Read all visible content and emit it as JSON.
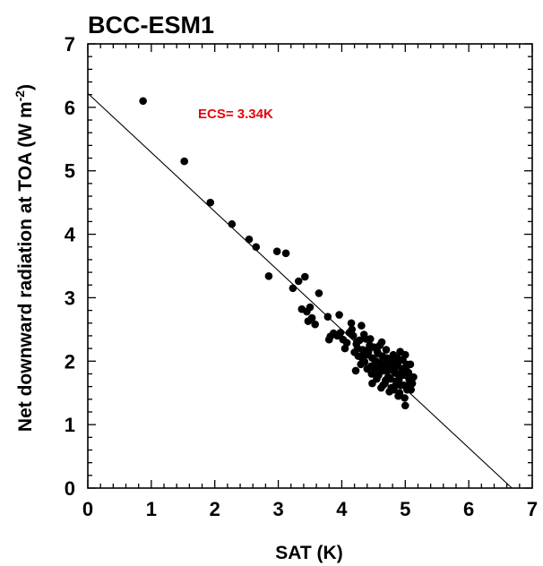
{
  "chart_data": {
    "type": "scatter",
    "title": "BCC-ESM1",
    "xlabel": "SAT (K)",
    "ylabel_main": "Net downward radiation at TOA (W m",
    "ylabel_sup": "-2",
    "ylabel_close": ")",
    "xlim": [
      0,
      7
    ],
    "ylim": [
      0,
      7
    ],
    "xticks": [
      0,
      1,
      2,
      3,
      4,
      5,
      6,
      7
    ],
    "yticks": [
      0,
      1,
      2,
      3,
      4,
      5,
      6,
      7
    ],
    "xtick_labels": [
      "0",
      "1",
      "2",
      "3",
      "4",
      "5",
      "6",
      "7"
    ],
    "ytick_labels": [
      "0",
      "1",
      "2",
      "3",
      "4",
      "5",
      "6",
      "7"
    ],
    "annotation": {
      "text": "ECS= 3.34K",
      "color": "#e8000b"
    },
    "regression_line": {
      "x": [
        0,
        6.68
      ],
      "y": [
        6.22,
        0
      ]
    },
    "points": [
      [
        0.87,
        6.1
      ],
      [
        1.52,
        5.15
      ],
      [
        1.93,
        4.5
      ],
      [
        2.27,
        4.16
      ],
      [
        2.54,
        3.92
      ],
      [
        2.65,
        3.8
      ],
      [
        2.85,
        3.34
      ],
      [
        2.98,
        3.73
      ],
      [
        3.12,
        3.7
      ],
      [
        3.23,
        3.15
      ],
      [
        3.32,
        3.26
      ],
      [
        3.42,
        3.33
      ],
      [
        3.37,
        2.82
      ],
      [
        3.45,
        2.78
      ],
      [
        3.5,
        2.85
      ],
      [
        3.53,
        2.68
      ],
      [
        3.47,
        2.63
      ],
      [
        3.58,
        2.58
      ],
      [
        3.64,
        3.07
      ],
      [
        3.78,
        2.7
      ],
      [
        3.82,
        2.39
      ],
      [
        3.87,
        2.44
      ],
      [
        3.93,
        2.4
      ],
      [
        3.96,
        2.73
      ],
      [
        3.8,
        2.34
      ],
      [
        4.02,
        2.34
      ],
      [
        4.08,
        2.29
      ],
      [
        4.12,
        2.45
      ],
      [
        4.16,
        2.5
      ],
      [
        4.2,
        2.14
      ],
      [
        4.23,
        2.27
      ],
      [
        4.26,
        2.08
      ],
      [
        4.28,
        2.33
      ],
      [
        4.31,
        2.56
      ],
      [
        4.33,
        2.18
      ],
      [
        4.36,
        1.99
      ],
      [
        4.38,
        2.35
      ],
      [
        4.41,
        2.1
      ],
      [
        4.43,
        2.2
      ],
      [
        4.46,
        1.92
      ],
      [
        4.48,
        2.05
      ],
      [
        4.51,
        2.22
      ],
      [
        4.53,
        1.88
      ],
      [
        4.56,
        2.15
      ],
      [
        4.58,
        1.78
      ],
      [
        4.61,
        1.98
      ],
      [
        4.63,
        2.3
      ],
      [
        4.66,
        1.85
      ],
      [
        4.68,
        1.65
      ],
      [
        4.71,
        2.05
      ],
      [
        4.73,
        1.75
      ],
      [
        4.76,
        1.92
      ],
      [
        4.78,
        1.58
      ],
      [
        4.81,
        2.1
      ],
      [
        4.83,
        1.82
      ],
      [
        4.86,
        1.68
      ],
      [
        4.88,
        1.95
      ],
      [
        4.91,
        1.5
      ],
      [
        4.93,
        1.78
      ],
      [
        4.96,
        2.02
      ],
      [
        4.98,
        1.62
      ],
      [
        5.01,
        1.88
      ],
      [
        5.03,
        1.55
      ],
      [
        5.06,
        1.72
      ],
      [
        5.08,
        1.95
      ],
      [
        5.11,
        1.65
      ],
      [
        5.13,
        1.75
      ],
      [
        5.0,
        1.3
      ],
      [
        4.89,
        1.45
      ],
      [
        4.75,
        1.52
      ],
      [
        4.65,
        1.62
      ],
      [
        4.55,
        1.72
      ],
      [
        4.47,
        1.8
      ],
      [
        4.4,
        1.88
      ],
      [
        4.3,
        1.95
      ],
      [
        4.22,
        1.85
      ],
      [
        4.25,
        2.2
      ],
      [
        4.35,
        2.42
      ],
      [
        4.45,
        2.35
      ],
      [
        4.6,
        2.25
      ],
      [
        4.7,
        2.18
      ],
      [
        4.8,
        2.0
      ],
      [
        4.9,
        1.7
      ],
      [
        5.0,
        2.1
      ],
      [
        5.05,
        1.82
      ],
      [
        4.85,
        1.62
      ],
      [
        4.72,
        1.85
      ],
      [
        4.62,
        1.58
      ],
      [
        4.52,
        1.95
      ],
      [
        4.42,
        2.15
      ],
      [
        4.32,
        2.05
      ],
      [
        4.18,
        2.4
      ],
      [
        4.15,
        2.6
      ],
      [
        4.05,
        2.2
      ],
      [
        3.98,
        2.45
      ],
      [
        4.92,
        2.15
      ],
      [
        4.95,
        1.88
      ],
      [
        4.87,
        1.8
      ],
      [
        4.77,
        1.72
      ],
      [
        4.67,
        1.95
      ],
      [
        4.57,
        2.12
      ],
      [
        4.48,
        1.65
      ],
      [
        4.58,
        1.88
      ],
      [
        4.69,
        1.7
      ],
      [
        4.79,
        1.9
      ],
      [
        4.99,
        1.42
      ],
      [
        5.04,
        1.62
      ],
      [
        5.09,
        1.55
      ],
      [
        4.82,
        1.55
      ],
      [
        4.93,
        1.62
      ],
      [
        4.74,
        2.02
      ],
      [
        4.64,
        2.08
      ],
      [
        4.54,
        2.0
      ],
      [
        4.44,
        2.25
      ],
      [
        4.24,
        2.3
      ],
      [
        4.34,
        2.12
      ],
      [
        4.84,
        1.9
      ],
      [
        5.02,
        1.95
      ],
      [
        4.97,
        1.78
      ],
      [
        4.88,
        2.05
      ]
    ]
  }
}
